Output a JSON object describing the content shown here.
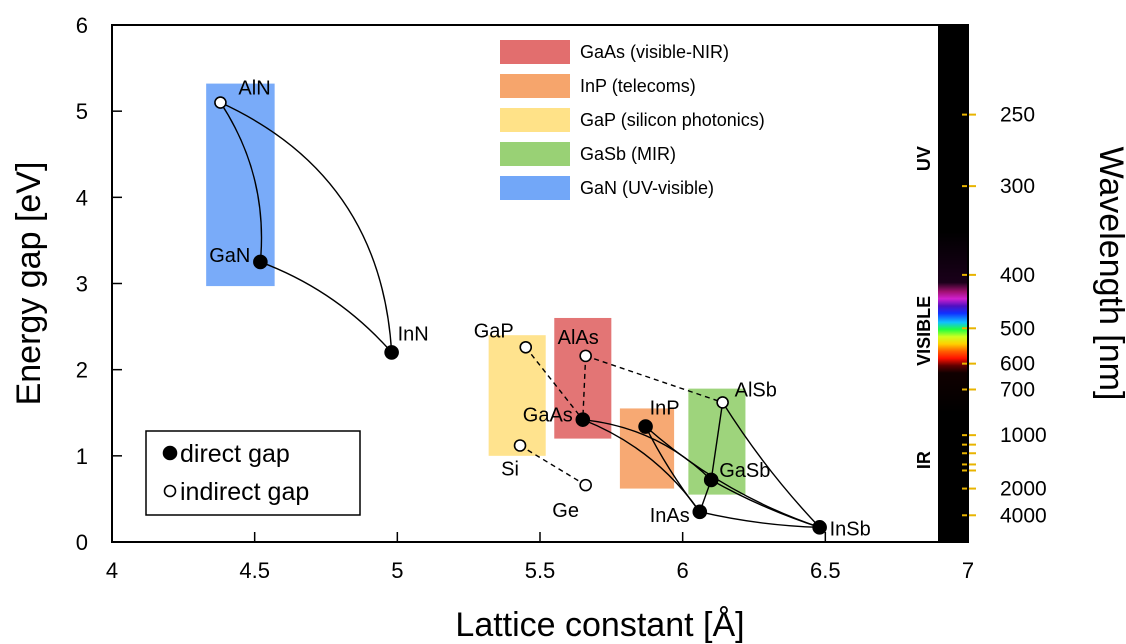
{
  "chart_data": {
    "type": "scatter",
    "xlabel": "Lattice constant [Å]",
    "ylabel": "Energy gap [eV]",
    "y2label": "Wavelength [nm]",
    "xlim": [
      4,
      7
    ],
    "ylim": [
      0,
      6
    ],
    "xticks": [
      "4",
      "4.5",
      "5",
      "5.5",
      "6",
      "6.5",
      "7"
    ],
    "yticks": [
      "0",
      "1",
      "2",
      "3",
      "4",
      "5",
      "6"
    ],
    "grid": false,
    "legend_position": "top-right",
    "substrates": [
      {
        "name": "GaAs (visible-NIR)",
        "color": "#e06666",
        "x": [
          5.55,
          5.75
        ],
        "y": [
          1.2,
          2.6
        ]
      },
      {
        "name": "InP (telecoms)",
        "color": "#f6a064",
        "x": [
          5.78,
          5.97
        ],
        "y": [
          0.62,
          1.55
        ]
      },
      {
        "name": "GaP (silicon photonics)",
        "color": "#ffe082",
        "x": [
          5.32,
          5.52
        ],
        "y": [
          1.0,
          2.4
        ]
      },
      {
        "name": "GaSb (MIR)",
        "color": "#93cf6e",
        "x": [
          6.02,
          6.22
        ],
        "y": [
          0.55,
          1.78
        ]
      },
      {
        "name": "GaN (UV-visible)",
        "color": "#6aa2f8",
        "x": [
          4.33,
          4.57
        ],
        "y": [
          2.97,
          5.32
        ]
      }
    ],
    "points": [
      {
        "label": "AlN",
        "x": 4.38,
        "y": 5.1,
        "gap": "indirect"
      },
      {
        "label": "GaN",
        "x": 4.52,
        "y": 3.25,
        "gap": "direct"
      },
      {
        "label": "InN",
        "x": 4.98,
        "y": 2.2,
        "gap": "direct"
      },
      {
        "label": "GaP",
        "x": 5.45,
        "y": 2.26,
        "gap": "indirect"
      },
      {
        "label": "AlAs",
        "x": 5.66,
        "y": 2.16,
        "gap": "indirect"
      },
      {
        "label": "GaAs",
        "x": 5.65,
        "y": 1.42,
        "gap": "direct"
      },
      {
        "label": "InP",
        "x": 5.87,
        "y": 1.34,
        "gap": "direct"
      },
      {
        "label": "AlSb",
        "x": 6.14,
        "y": 1.62,
        "gap": "indirect"
      },
      {
        "label": "GaSb",
        "x": 6.1,
        "y": 0.72,
        "gap": "direct"
      },
      {
        "label": "InAs",
        "x": 6.06,
        "y": 0.35,
        "gap": "direct"
      },
      {
        "label": "InSb",
        "x": 6.48,
        "y": 0.17,
        "gap": "direct"
      },
      {
        "label": "Si",
        "x": 5.43,
        "y": 1.12,
        "gap": "indirect"
      },
      {
        "label": "Ge",
        "x": 5.66,
        "y": 0.66,
        "gap": "indirect"
      }
    ],
    "curves": [
      {
        "from": "AlN",
        "to": "GaN",
        "bow": -0.35,
        "style": "solid"
      },
      {
        "from": "AlN",
        "to": "InN",
        "bow": -0.6,
        "style": "solid"
      },
      {
        "from": "GaN",
        "to": "InN",
        "bow": -0.25,
        "style": "solid"
      },
      {
        "from": "GaP",
        "to": "GaAs",
        "bow": 0,
        "style": "dashed"
      },
      {
        "from": "AlAs",
        "to": "GaAs",
        "bow": 0,
        "style": "dashed"
      },
      {
        "from": "AlAs",
        "to": "AlSb",
        "bow": 0,
        "style": "dashed"
      },
      {
        "from": "GaAs",
        "to": "InAs",
        "bow": -0.3,
        "style": "solid"
      },
      {
        "from": "GaAs",
        "to": "GaSb",
        "bow": -0.35,
        "style": "solid"
      },
      {
        "from": "InP",
        "to": "InAs",
        "bow": 0.1,
        "style": "solid"
      },
      {
        "from": "InP",
        "to": "InSb",
        "bow": 0.2,
        "style": "solid"
      },
      {
        "from": "InAs",
        "to": "InSb",
        "bow": 0.1,
        "style": "solid"
      },
      {
        "from": "InAs",
        "to": "GaSb",
        "bow": 0,
        "style": "solid"
      },
      {
        "from": "GaSb",
        "to": "AlSb",
        "bow": 0,
        "style": "solid"
      },
      {
        "from": "GaSb",
        "to": "InSb",
        "bow": 0.1,
        "style": "solid"
      },
      {
        "from": "AlSb",
        "to": "InSb",
        "bow": 0.1,
        "style": "solid"
      },
      {
        "from": "Si",
        "to": "Ge",
        "bow": 0,
        "style": "dashed"
      }
    ],
    "point_legend": [
      {
        "label": "direct gap",
        "gap": "direct"
      },
      {
        "label": "indirect gap",
        "gap": "indirect"
      }
    ],
    "wavelength_ticks": [
      {
        "label": "250",
        "energy": 4.96
      },
      {
        "label": "300",
        "energy": 4.13
      },
      {
        "label": "400",
        "energy": 3.1
      },
      {
        "label": "500",
        "energy": 2.48
      },
      {
        "label": "600",
        "energy": 2.07
      },
      {
        "label": "700",
        "energy": 1.77
      },
      {
        "label": "1000",
        "energy": 1.24
      },
      {
        "label": "2000",
        "energy": 0.62
      },
      {
        "label": "4000",
        "energy": 0.31
      }
    ],
    "spectrum_bands": [
      {
        "label": "UV",
        "energy": 4.45
      },
      {
        "label": "VISIBLE",
        "energy": 2.45
      },
      {
        "label": "IR",
        "energy": 0.95
      }
    ],
    "tick_mark_color": "#e8b400"
  }
}
